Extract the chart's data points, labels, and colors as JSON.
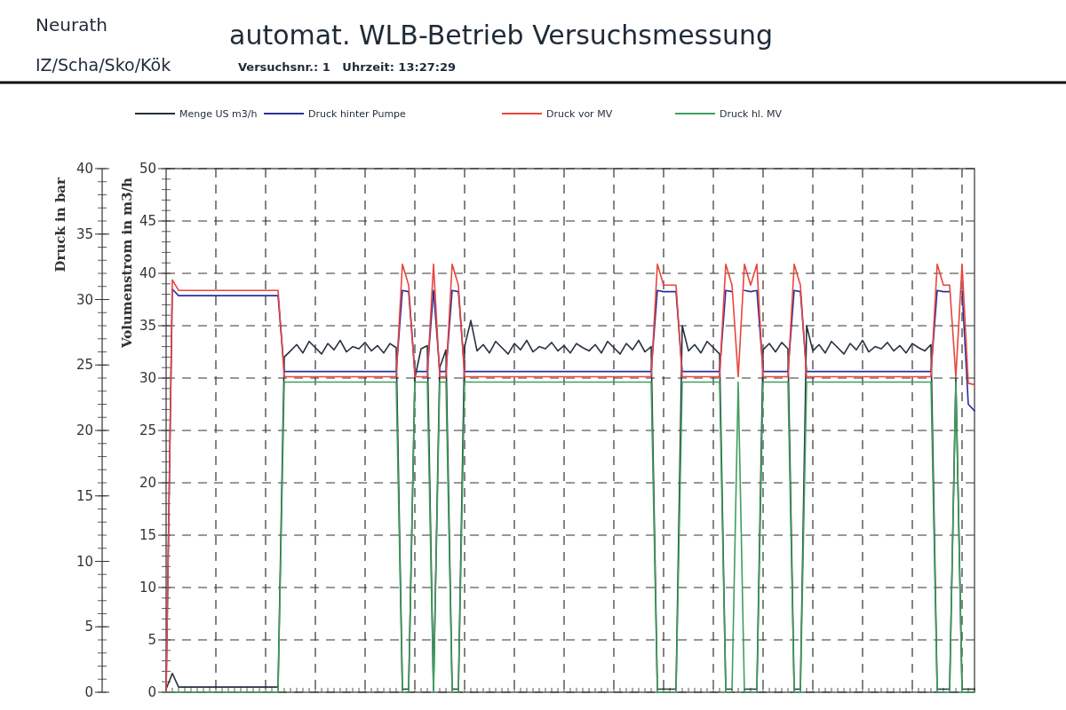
{
  "chart_data": {
    "type": "line",
    "title": "automat. WLB-Betrieb Versuchsmessung",
    "subtitle": "Versuchsnr.: 1   Uhrzeit: 13:27:29",
    "annotations": [
      "Neurath",
      "IZ/Scha/Sko/Kök"
    ],
    "ylabel": "Volumenstrom in m3/h",
    "y2label": "Druck in bar",
    "ylim": [
      0,
      50
    ],
    "yticks": [
      0,
      5,
      10,
      15,
      20,
      25,
      30,
      35,
      40,
      45,
      50
    ],
    "y2lim": [
      0,
      40
    ],
    "y2ticks": [
      0,
      5,
      10,
      15,
      20,
      25,
      30,
      35,
      40
    ],
    "grid": true,
    "legend": "top",
    "line_style": "solid",
    "marker": "none",
    "categories": [
      null,
      null,
      null,
      null,
      null,
      null,
      null,
      null,
      null,
      null,
      null,
      null,
      null,
      null,
      null,
      null,
      null,
      null,
      null,
      null,
      null,
      null,
      null,
      null,
      null,
      null,
      null,
      null,
      null,
      null,
      null,
      null,
      null,
      null,
      null,
      null,
      null,
      null,
      null,
      null,
      null,
      null,
      null,
      null,
      null,
      null,
      null,
      null,
      null,
      null,
      null,
      null,
      null,
      null,
      null,
      null,
      null,
      null,
      null,
      null,
      null,
      null,
      null,
      null,
      null,
      null,
      null,
      null,
      null,
      null,
      null,
      null,
      null,
      null,
      null,
      null,
      null,
      null,
      null,
      null,
      null,
      null,
      null,
      null,
      null,
      null,
      null,
      null,
      null,
      null,
      null,
      null,
      null,
      null,
      null,
      null,
      null,
      null,
      null,
      null,
      null,
      null,
      null,
      null,
      null,
      null,
      null,
      null,
      null,
      null,
      null,
      null,
      null,
      null,
      null,
      null,
      null,
      null,
      null,
      null,
      null,
      null,
      null,
      null,
      null,
      null,
      null,
      null,
      null,
      null,
      null
    ],
    "series": [
      {
        "name": "Menge US m3/h",
        "color": "#27313d",
        "values": [
          0.3,
          1.8,
          0.5,
          0.5,
          0.5,
          0.5,
          0.5,
          0.5,
          0.5,
          0.5,
          0.5,
          0.5,
          0.5,
          0.5,
          0.5,
          0.5,
          0.5,
          0.5,
          0.5,
          32.0,
          32.6,
          33.2,
          32.4,
          33.5,
          32.9,
          32.3,
          33.3,
          32.7,
          33.6,
          32.5,
          33.0,
          32.8,
          33.4,
          32.6,
          33.1,
          32.4,
          33.3,
          32.9,
          0.3,
          0.3,
          30.0,
          32.8,
          33.1,
          0.3,
          31.0,
          32.7,
          0.3,
          0.3,
          33.0,
          35.5,
          32.6,
          33.2,
          32.4,
          33.5,
          32.9,
          32.3,
          33.3,
          32.7,
          33.6,
          32.5,
          33.0,
          32.8,
          33.4,
          32.6,
          33.1,
          32.4,
          33.3,
          32.9,
          32.6,
          33.2,
          32.4,
          33.5,
          32.9,
          32.3,
          33.3,
          32.7,
          33.6,
          32.5,
          33.0,
          0.3,
          0.3,
          0.3,
          0.3,
          35.0,
          32.6,
          33.2,
          32.4,
          33.5,
          32.9,
          32.3,
          0.3,
          0.3,
          null,
          0.3,
          0.3,
          0.3,
          32.7,
          33.3,
          32.5,
          33.4,
          32.8,
          0.3,
          0.3,
          35.0,
          32.6,
          33.2,
          32.4,
          33.5,
          32.9,
          32.3,
          33.3,
          32.7,
          33.6,
          32.5,
          33.0,
          32.8,
          33.4,
          32.6,
          33.1,
          32.4,
          33.3,
          32.9,
          32.6,
          33.2,
          0.3,
          0.3,
          0.3,
          30.0,
          0.3,
          0.3,
          0.3
        ]
      },
      {
        "name": "Druck hinter Pumpe",
        "color": "#2a2f9c",
        "axis": "y2",
        "values": [
          0,
          30.8,
          30.3,
          30.3,
          30.3,
          30.3,
          30.3,
          30.3,
          30.3,
          30.3,
          30.3,
          30.3,
          30.3,
          30.3,
          30.3,
          30.3,
          30.3,
          30.3,
          30.3,
          24.5,
          24.5,
          24.5,
          24.5,
          24.5,
          24.5,
          24.5,
          24.5,
          24.5,
          24.5,
          24.5,
          24.5,
          24.5,
          24.5,
          24.5,
          24.5,
          24.5,
          24.5,
          24.5,
          30.7,
          30.6,
          24.5,
          24.5,
          24.5,
          30.7,
          24.5,
          24.5,
          30.7,
          30.6,
          24.5,
          24.5,
          24.5,
          24.5,
          24.5,
          24.5,
          24.5,
          24.5,
          24.5,
          24.5,
          24.5,
          24.5,
          24.5,
          24.5,
          24.5,
          24.5,
          24.5,
          24.5,
          24.5,
          24.5,
          24.5,
          24.5,
          24.5,
          24.5,
          24.5,
          24.5,
          24.5,
          24.5,
          24.5,
          24.5,
          24.5,
          30.7,
          30.6,
          30.6,
          30.6,
          24.5,
          24.5,
          24.5,
          24.5,
          24.5,
          24.5,
          24.5,
          30.7,
          30.6,
          null,
          30.7,
          30.6,
          30.7,
          24.5,
          24.5,
          24.5,
          24.5,
          24.5,
          30.7,
          30.6,
          24.5,
          24.5,
          24.5,
          24.5,
          24.5,
          24.5,
          24.5,
          24.5,
          24.5,
          24.5,
          24.5,
          24.5,
          24.5,
          24.5,
          24.5,
          24.5,
          24.5,
          24.5,
          24.5,
          24.5,
          24.5,
          30.7,
          30.6,
          30.6,
          null,
          30.7,
          22.0,
          21.5
        ]
      },
      {
        "name": "Druck vor MV",
        "color": "#e8453c",
        "axis": "y2",
        "values": [
          0,
          31.5,
          30.7,
          30.7,
          30.7,
          30.7,
          30.7,
          30.7,
          30.7,
          30.7,
          30.7,
          30.7,
          30.7,
          30.7,
          30.7,
          30.7,
          30.7,
          30.7,
          30.7,
          24.1,
          24.1,
          24.1,
          24.1,
          24.1,
          24.1,
          24.1,
          24.1,
          24.1,
          24.1,
          24.1,
          24.1,
          24.1,
          24.1,
          24.1,
          24.1,
          24.1,
          24.1,
          24.1,
          32.7,
          31.1,
          24.1,
          24.1,
          24.1,
          32.7,
          24.1,
          24.1,
          32.7,
          31.1,
          24.1,
          24.1,
          24.1,
          24.1,
          24.1,
          24.1,
          24.1,
          24.1,
          24.1,
          24.1,
          24.1,
          24.1,
          24.1,
          24.1,
          24.1,
          24.1,
          24.1,
          24.1,
          24.1,
          24.1,
          24.1,
          24.1,
          24.1,
          24.1,
          24.1,
          24.1,
          24.1,
          24.1,
          24.1,
          24.1,
          24.1,
          32.7,
          31.1,
          31.1,
          31.1,
          24.1,
          24.1,
          24.1,
          24.1,
          24.1,
          24.1,
          24.1,
          32.7,
          31.1,
          24.1,
          32.7,
          31.1,
          32.7,
          24.1,
          24.1,
          24.1,
          24.1,
          24.1,
          32.7,
          31.1,
          24.1,
          24.1,
          24.1,
          24.1,
          24.1,
          24.1,
          24.1,
          24.1,
          24.1,
          24.1,
          24.1,
          24.1,
          24.1,
          24.1,
          24.1,
          24.1,
          24.1,
          24.1,
          24.1,
          24.1,
          24.1,
          32.7,
          31.1,
          31.1,
          24.1,
          32.7,
          23.6,
          23.5
        ]
      },
      {
        "name": "Druck hl. MV",
        "color": "#3f9f5e",
        "axis": "y2",
        "values": [
          0,
          0,
          0,
          0,
          0,
          0,
          0,
          0,
          0,
          0,
          0,
          0,
          0,
          0,
          0,
          0,
          0,
          0,
          0,
          23.7,
          23.7,
          23.7,
          23.7,
          23.7,
          23.7,
          23.7,
          23.7,
          23.7,
          23.7,
          23.7,
          23.7,
          23.7,
          23.7,
          23.7,
          23.7,
          23.7,
          23.7,
          23.7,
          0,
          0,
          23.7,
          23.7,
          23.7,
          0,
          23.7,
          23.7,
          0,
          0,
          23.7,
          23.7,
          23.7,
          23.7,
          23.7,
          23.7,
          23.7,
          23.7,
          23.7,
          23.7,
          23.7,
          23.7,
          23.7,
          23.7,
          23.7,
          23.7,
          23.7,
          23.7,
          23.7,
          23.7,
          23.7,
          23.7,
          23.7,
          23.7,
          23.7,
          23.7,
          23.7,
          23.7,
          23.7,
          23.7,
          23.7,
          0,
          0,
          0,
          0,
          23.7,
          23.7,
          23.7,
          23.7,
          23.7,
          23.7,
          23.7,
          0,
          0,
          23.7,
          0,
          0,
          0,
          23.7,
          23.7,
          23.7,
          23.7,
          23.7,
          0,
          0,
          23.7,
          23.7,
          23.7,
          23.7,
          23.7,
          23.7,
          23.7,
          23.7,
          23.7,
          23.7,
          23.7,
          23.7,
          23.7,
          23.7,
          23.7,
          23.7,
          23.7,
          23.7,
          23.7,
          23.7,
          23.7,
          0,
          0,
          0,
          23.7,
          0,
          0,
          0
        ]
      }
    ]
  }
}
